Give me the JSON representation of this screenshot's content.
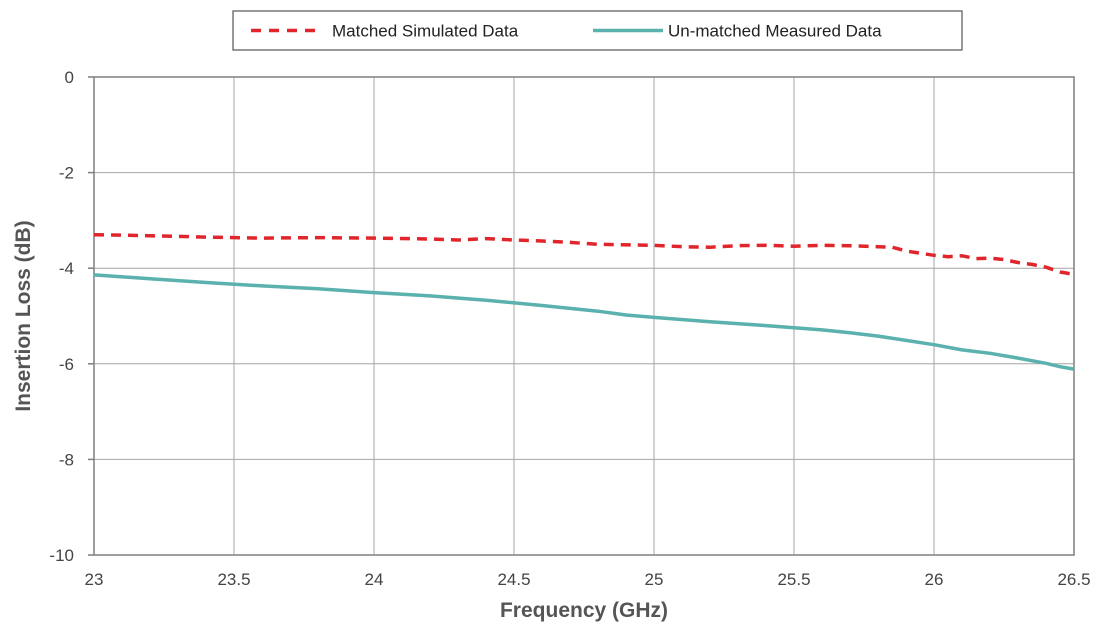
{
  "chart_data": {
    "type": "line",
    "title": "",
    "xlabel": "Frequency (GHz)",
    "ylabel": "Insertion Loss (dB)",
    "xlim": [
      23,
      26.5
    ],
    "ylim": [
      -10,
      0
    ],
    "xticks": [
      "23",
      "23.5",
      "24",
      "24.5",
      "25",
      "25.5",
      "26",
      "26.5"
    ],
    "yticks": [
      "0",
      "-2",
      "-4",
      "-6",
      "-8",
      "-10"
    ],
    "grid": true,
    "legend_position": "top-center",
    "series": [
      {
        "name": "Matched Simulated Data",
        "color": "#e0262b",
        "style": "dashed",
        "x": [
          23.0,
          23.2,
          23.4,
          23.6,
          23.8,
          24.0,
          24.2,
          24.3,
          24.4,
          24.5,
          24.6,
          24.7,
          24.8,
          25.0,
          25.1,
          25.2,
          25.3,
          25.4,
          25.5,
          25.6,
          25.7,
          25.8,
          25.85,
          25.9,
          26.0,
          26.05,
          26.1,
          26.15,
          26.2,
          26.25,
          26.3,
          26.35,
          26.4,
          26.45,
          26.5
        ],
        "y": [
          -3.3,
          -3.32,
          -3.35,
          -3.37,
          -3.36,
          -3.37,
          -3.39,
          -3.41,
          -3.38,
          -3.41,
          -3.43,
          -3.46,
          -3.5,
          -3.52,
          -3.55,
          -3.56,
          -3.53,
          -3.52,
          -3.54,
          -3.52,
          -3.53,
          -3.55,
          -3.56,
          -3.64,
          -3.73,
          -3.76,
          -3.74,
          -3.8,
          -3.79,
          -3.82,
          -3.88,
          -3.92,
          -3.98,
          -4.08,
          -4.13
        ]
      },
      {
        "name": "Un-matched Measured Data",
        "color": "#5ab1ad",
        "style": "solid",
        "x": [
          23.0,
          23.2,
          23.4,
          23.6,
          23.8,
          24.0,
          24.2,
          24.4,
          24.6,
          24.8,
          24.9,
          25.0,
          25.2,
          25.4,
          25.6,
          25.7,
          25.8,
          25.9,
          26.0,
          26.1,
          26.2,
          26.3,
          26.4,
          26.45,
          26.5
        ],
        "y": [
          -4.14,
          -4.22,
          -4.3,
          -4.37,
          -4.43,
          -4.51,
          -4.58,
          -4.67,
          -4.78,
          -4.9,
          -4.98,
          -5.03,
          -5.12,
          -5.2,
          -5.29,
          -5.35,
          -5.42,
          -5.51,
          -5.6,
          -5.71,
          -5.78,
          -5.88,
          -5.99,
          -6.06,
          -6.11
        ]
      }
    ]
  }
}
